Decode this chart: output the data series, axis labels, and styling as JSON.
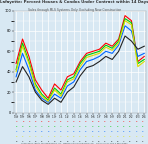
{
  "title": "Lafayette: Percent Houses & Condos Under Contract within 14 Days",
  "subtitle": "Sales through MLS Systems Only: Excluding New Construction",
  "background_color": "#d8e8f3",
  "plot_bg_color": "#d8e8f3",
  "grid_color": "#ffffff",
  "x_labels": [
    "04",
    "05",
    "06",
    "07",
    "08",
    "09",
    "10",
    "11",
    "12",
    "13",
    "14",
    "15",
    "16",
    "17",
    "18",
    "19",
    "20",
    "21",
    "22",
    "23",
    "24"
  ],
  "series": {
    "red": {
      "color": "#ff0000",
      "data": [
        48,
        72,
        55,
        32,
        22,
        14,
        28,
        22,
        35,
        38,
        50,
        58,
        60,
        62,
        68,
        65,
        72,
        95,
        90,
        50,
        55
      ]
    },
    "green": {
      "color": "#00cc00",
      "data": [
        42,
        68,
        50,
        28,
        18,
        12,
        24,
        18,
        32,
        35,
        48,
        56,
        58,
        60,
        66,
        63,
        70,
        92,
        88,
        48,
        52
      ]
    },
    "blue": {
      "color": "#0066ff",
      "data": [
        35,
        58,
        42,
        22,
        14,
        10,
        18,
        14,
        26,
        30,
        42,
        50,
        52,
        55,
        60,
        58,
        66,
        85,
        80,
        55,
        58
      ]
    },
    "yellow": {
      "color": "#dddd00",
      "data": [
        40,
        65,
        48,
        26,
        16,
        11,
        22,
        16,
        30,
        33,
        45,
        54,
        56,
        58,
        64,
        61,
        68,
        90,
        86,
        45,
        50
      ]
    },
    "black": {
      "color": "#222222",
      "data": [
        30,
        45,
        35,
        20,
        12,
        8,
        14,
        10,
        20,
        25,
        36,
        44,
        46,
        50,
        55,
        52,
        60,
        75,
        70,
        62,
        65
      ]
    }
  },
  "ylim": [
    0,
    100
  ],
  "ytick_step": 20,
  "footer": "Compiled by Agents For Home Buyers LLC   www.agentsforhomebuyers.com    Data Sources: MLS & REcolorado"
}
